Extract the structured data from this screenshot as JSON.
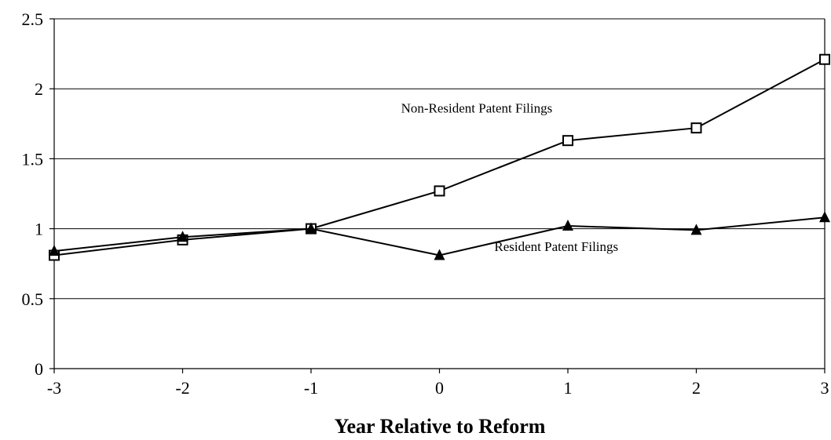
{
  "chart_data": {
    "type": "line",
    "title": "",
    "xlabel": "Year Relative to Reform",
    "ylabel": "",
    "x": [
      -3,
      -2,
      -1,
      0,
      1,
      2,
      3
    ],
    "x_tick_labels": [
      "-3",
      "-2",
      "-1",
      "0",
      "1",
      "2",
      "3"
    ],
    "y_tick_labels": [
      "0",
      "0.5",
      "1",
      "1.5",
      "2",
      "2.5"
    ],
    "y_ticks": [
      0,
      0.5,
      1,
      1.5,
      2,
      2.5
    ],
    "xlim": [
      -3,
      3
    ],
    "ylim": [
      0,
      2.5
    ],
    "grid": true,
    "series": [
      {
        "name": "Non-Resident Patent Filings",
        "marker": "open-square",
        "values": [
          0.81,
          0.92,
          1.0,
          1.27,
          1.63,
          1.72,
          2.21
        ]
      },
      {
        "name": "Resident Patent Filings",
        "marker": "filled-triangle",
        "values": [
          0.84,
          0.94,
          1.0,
          0.81,
          1.02,
          0.99,
          1.08
        ]
      }
    ]
  }
}
